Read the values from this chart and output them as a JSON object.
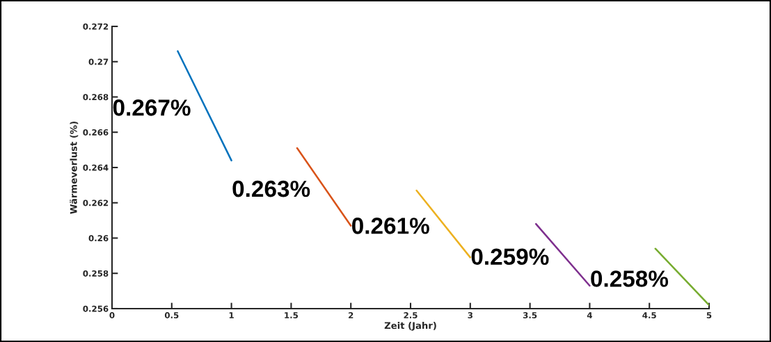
{
  "chart_data": {
    "type": "line",
    "xlabel": "Zeit (Jahr)",
    "ylabel": "Wärmeverlust (%)",
    "xlim": [
      0,
      5
    ],
    "xticks": [
      0,
      0.5,
      1,
      1.5,
      2,
      2.5,
      3,
      3.5,
      4,
      4.5,
      5
    ],
    "ylim": [
      0.256,
      0.272
    ],
    "yticks": [
      0.256,
      0.258,
      {
        "value": 0.26,
        "label": "0.26"
      },
      0.262,
      0.264,
      0.266,
      0.268,
      {
        "value": 0.27,
        "label": "0.27"
      },
      0.272
    ],
    "grid": false,
    "legend": false,
    "series": [
      {
        "color": "#0072bd",
        "x": [
          0.55,
          1.0
        ],
        "values": [
          0.2706,
          0.2644
        ]
      },
      {
        "color": "#d95319",
        "x": [
          1.55,
          2.0
        ],
        "values": [
          0.2651,
          0.2607
        ]
      },
      {
        "color": "#edb120",
        "x": [
          2.55,
          3.0
        ],
        "values": [
          0.2627,
          0.2589
        ]
      },
      {
        "color": "#7e2f8e",
        "x": [
          3.55,
          4.0
        ],
        "values": [
          0.2608,
          0.2573
        ]
      },
      {
        "color": "#77ac30",
        "x": [
          4.55,
          5.0
        ],
        "values": [
          0.2594,
          0.2562
        ]
      }
    ],
    "annotations": [
      "0.267%",
      "0.263%",
      "0.261%",
      "0.259%",
      "0.258%"
    ]
  }
}
